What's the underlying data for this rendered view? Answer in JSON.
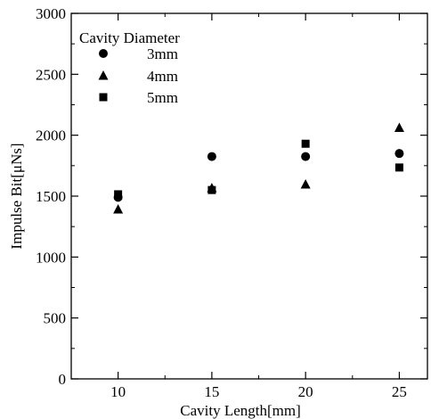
{
  "chart_data": {
    "type": "scatter",
    "title": "",
    "xlabel": "Cavity Length[mm]",
    "ylabel": "Impulse Bit[μNs]",
    "xlim": [
      7.5,
      26.5
    ],
    "ylim": [
      0,
      3000
    ],
    "x_ticks": [
      10,
      15,
      20,
      25
    ],
    "x_tick_labels": [
      "10",
      "15",
      "20",
      "25"
    ],
    "y_ticks": [
      0,
      500,
      1000,
      1500,
      2000,
      2500,
      3000
    ],
    "y_tick_labels": [
      "0",
      "500",
      "1000",
      "1500",
      "2000",
      "2500",
      "3000"
    ],
    "grid": false,
    "legend_title": "Cavity Diameter",
    "legend_position": "top-left",
    "series": [
      {
        "name": "3mm",
        "marker": "circle",
        "x": [
          10,
          15,
          20,
          25
        ],
        "y": [
          1490,
          1825,
          1825,
          1850
        ]
      },
      {
        "name": "4mm",
        "marker": "triangle",
        "x": [
          10,
          15,
          20,
          25
        ],
        "y": [
          1390,
          1565,
          1595,
          2060
        ]
      },
      {
        "name": "5mm",
        "marker": "square",
        "x": [
          10,
          15,
          20,
          25
        ],
        "y": [
          1515,
          1550,
          1930,
          1735
        ]
      }
    ],
    "colors": {
      "markers": "#000000",
      "axes": "#000000",
      "background": "#ffffff"
    }
  }
}
